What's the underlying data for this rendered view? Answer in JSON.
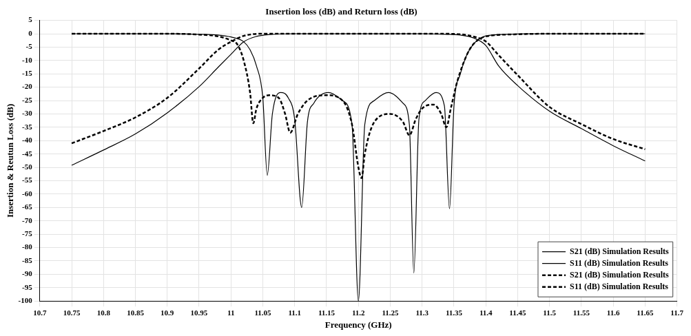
{
  "chart_data": {
    "type": "line",
    "title": "Insertion loss (dB) and Return loss (dB)",
    "xlabel": "Frequency (GHz)",
    "ylabel": "Insertion & Reutun Loss (dB)",
    "xlim": [
      10.7,
      11.7
    ],
    "xticks": [
      10.7,
      10.75,
      10.8,
      10.85,
      10.9,
      10.95,
      11,
      11.05,
      11.1,
      11.15,
      11.2,
      11.25,
      11.3,
      11.35,
      11.4,
      11.45,
      11.5,
      11.55,
      11.6,
      11.65,
      11.7
    ],
    "ylim": [
      -100,
      5
    ],
    "yticks": [
      5,
      0,
      -5,
      -10,
      -15,
      -20,
      -25,
      -30,
      -35,
      -40,
      -45,
      -50,
      -55,
      -60,
      -65,
      -70,
      -75,
      -80,
      -85,
      -90,
      -95,
      -100
    ],
    "grid": true,
    "legend": "bottom right",
    "series": [
      {
        "name": "S21 (dB) Simulation Results",
        "color": "#000000",
        "line_style": "solid",
        "x": [
          10.75,
          10.8,
          10.85,
          10.9,
          10.95,
          10.98,
          11,
          11.02,
          11.04,
          11.06,
          11.1,
          11.2,
          11.3,
          11.34,
          11.36,
          11.38,
          11.4,
          11.42,
          11.45,
          11.5,
          11.55,
          11.6,
          11.65
        ],
        "values": [
          -49.2,
          -43.5,
          -37.5,
          -29.6,
          -19.8,
          -12.5,
          -7.7,
          -3,
          -1,
          -0.3,
          0,
          0,
          0,
          -0.2,
          -0.5,
          -1.5,
          -4.4,
          -12,
          -19.4,
          -29,
          -35.5,
          -41.9,
          -47.6
        ]
      },
      {
        "name": "S11 (dB) Simulation Results",
        "color": "#000000",
        "line_style": "solid",
        "x": [
          10.75,
          10.9,
          10.95,
          10.98,
          11,
          11.02,
          11.03,
          11.04,
          11.05,
          11.057,
          11.065,
          11.078,
          11.09,
          11.1,
          11.111,
          11.12,
          11.13,
          11.153,
          11.175,
          11.19,
          11.2,
          11.21,
          11.225,
          11.247,
          11.27,
          11.28,
          11.287,
          11.295,
          11.305,
          11.322,
          11.335,
          11.343,
          11.35,
          11.36,
          11.37,
          11.38,
          11.39,
          11.4,
          11.45,
          11.5,
          11.65
        ],
        "values": [
          0,
          0,
          -0.2,
          -0.5,
          -1.2,
          -3,
          -6,
          -12,
          -24,
          -53,
          -30,
          -22,
          -24,
          -32,
          -65,
          -33,
          -26,
          -22,
          -25,
          -34,
          -100,
          -34,
          -25,
          -22,
          -26,
          -34,
          -89.5,
          -32,
          -25,
          -22,
          -27,
          -65.5,
          -27,
          -15,
          -8,
          -4,
          -2,
          -0.8,
          -0.1,
          0,
          0
        ]
      },
      {
        "name": "S21 (dB) Simulation Results",
        "color": "#000000",
        "line_style": "dashed",
        "x": [
          10.75,
          10.8,
          10.85,
          10.9,
          10.95,
          10.98,
          11,
          11.02,
          11.05,
          11.2,
          11.33,
          11.36,
          11.38,
          11.4,
          11.42,
          11.45,
          11.5,
          11.55,
          11.6,
          11.65
        ],
        "values": [
          -41,
          -36.4,
          -31.3,
          -24,
          -13,
          -6,
          -3,
          -0.8,
          0,
          0,
          0,
          -0.2,
          -1,
          -2.9,
          -8,
          -15.5,
          -27.4,
          -33.8,
          -39.4,
          -43.2
        ]
      },
      {
        "name": "S11 (dB) Simulation Results",
        "color": "#000000",
        "line_style": "dashed",
        "x": [
          10.75,
          10.9,
          10.95,
          10.98,
          11,
          11.01,
          11.02,
          11.03,
          11.035,
          11.04,
          11.05,
          11.06,
          11.075,
          11.085,
          11.093,
          11.105,
          11.12,
          11.15,
          11.175,
          11.19,
          11.2,
          11.205,
          11.21,
          11.225,
          11.25,
          11.27,
          11.28,
          11.29,
          11.3,
          11.318,
          11.33,
          11.338,
          11.345,
          11.355,
          11.37,
          11.38,
          11.39,
          11.4,
          11.45,
          11.5,
          11.65
        ],
        "values": [
          0,
          0,
          -0.3,
          -1,
          -2.5,
          -4,
          -10,
          -22,
          -33.5,
          -28,
          -24,
          -23,
          -24,
          -30,
          -37,
          -30,
          -25,
          -23,
          -25,
          -34,
          -50,
          -54,
          -45,
          -33,
          -30,
          -33,
          -38,
          -32,
          -28,
          -26.5,
          -30,
          -35,
          -28,
          -18,
          -8,
          -4,
          -2,
          -1,
          -0.2,
          0,
          0
        ]
      }
    ]
  }
}
